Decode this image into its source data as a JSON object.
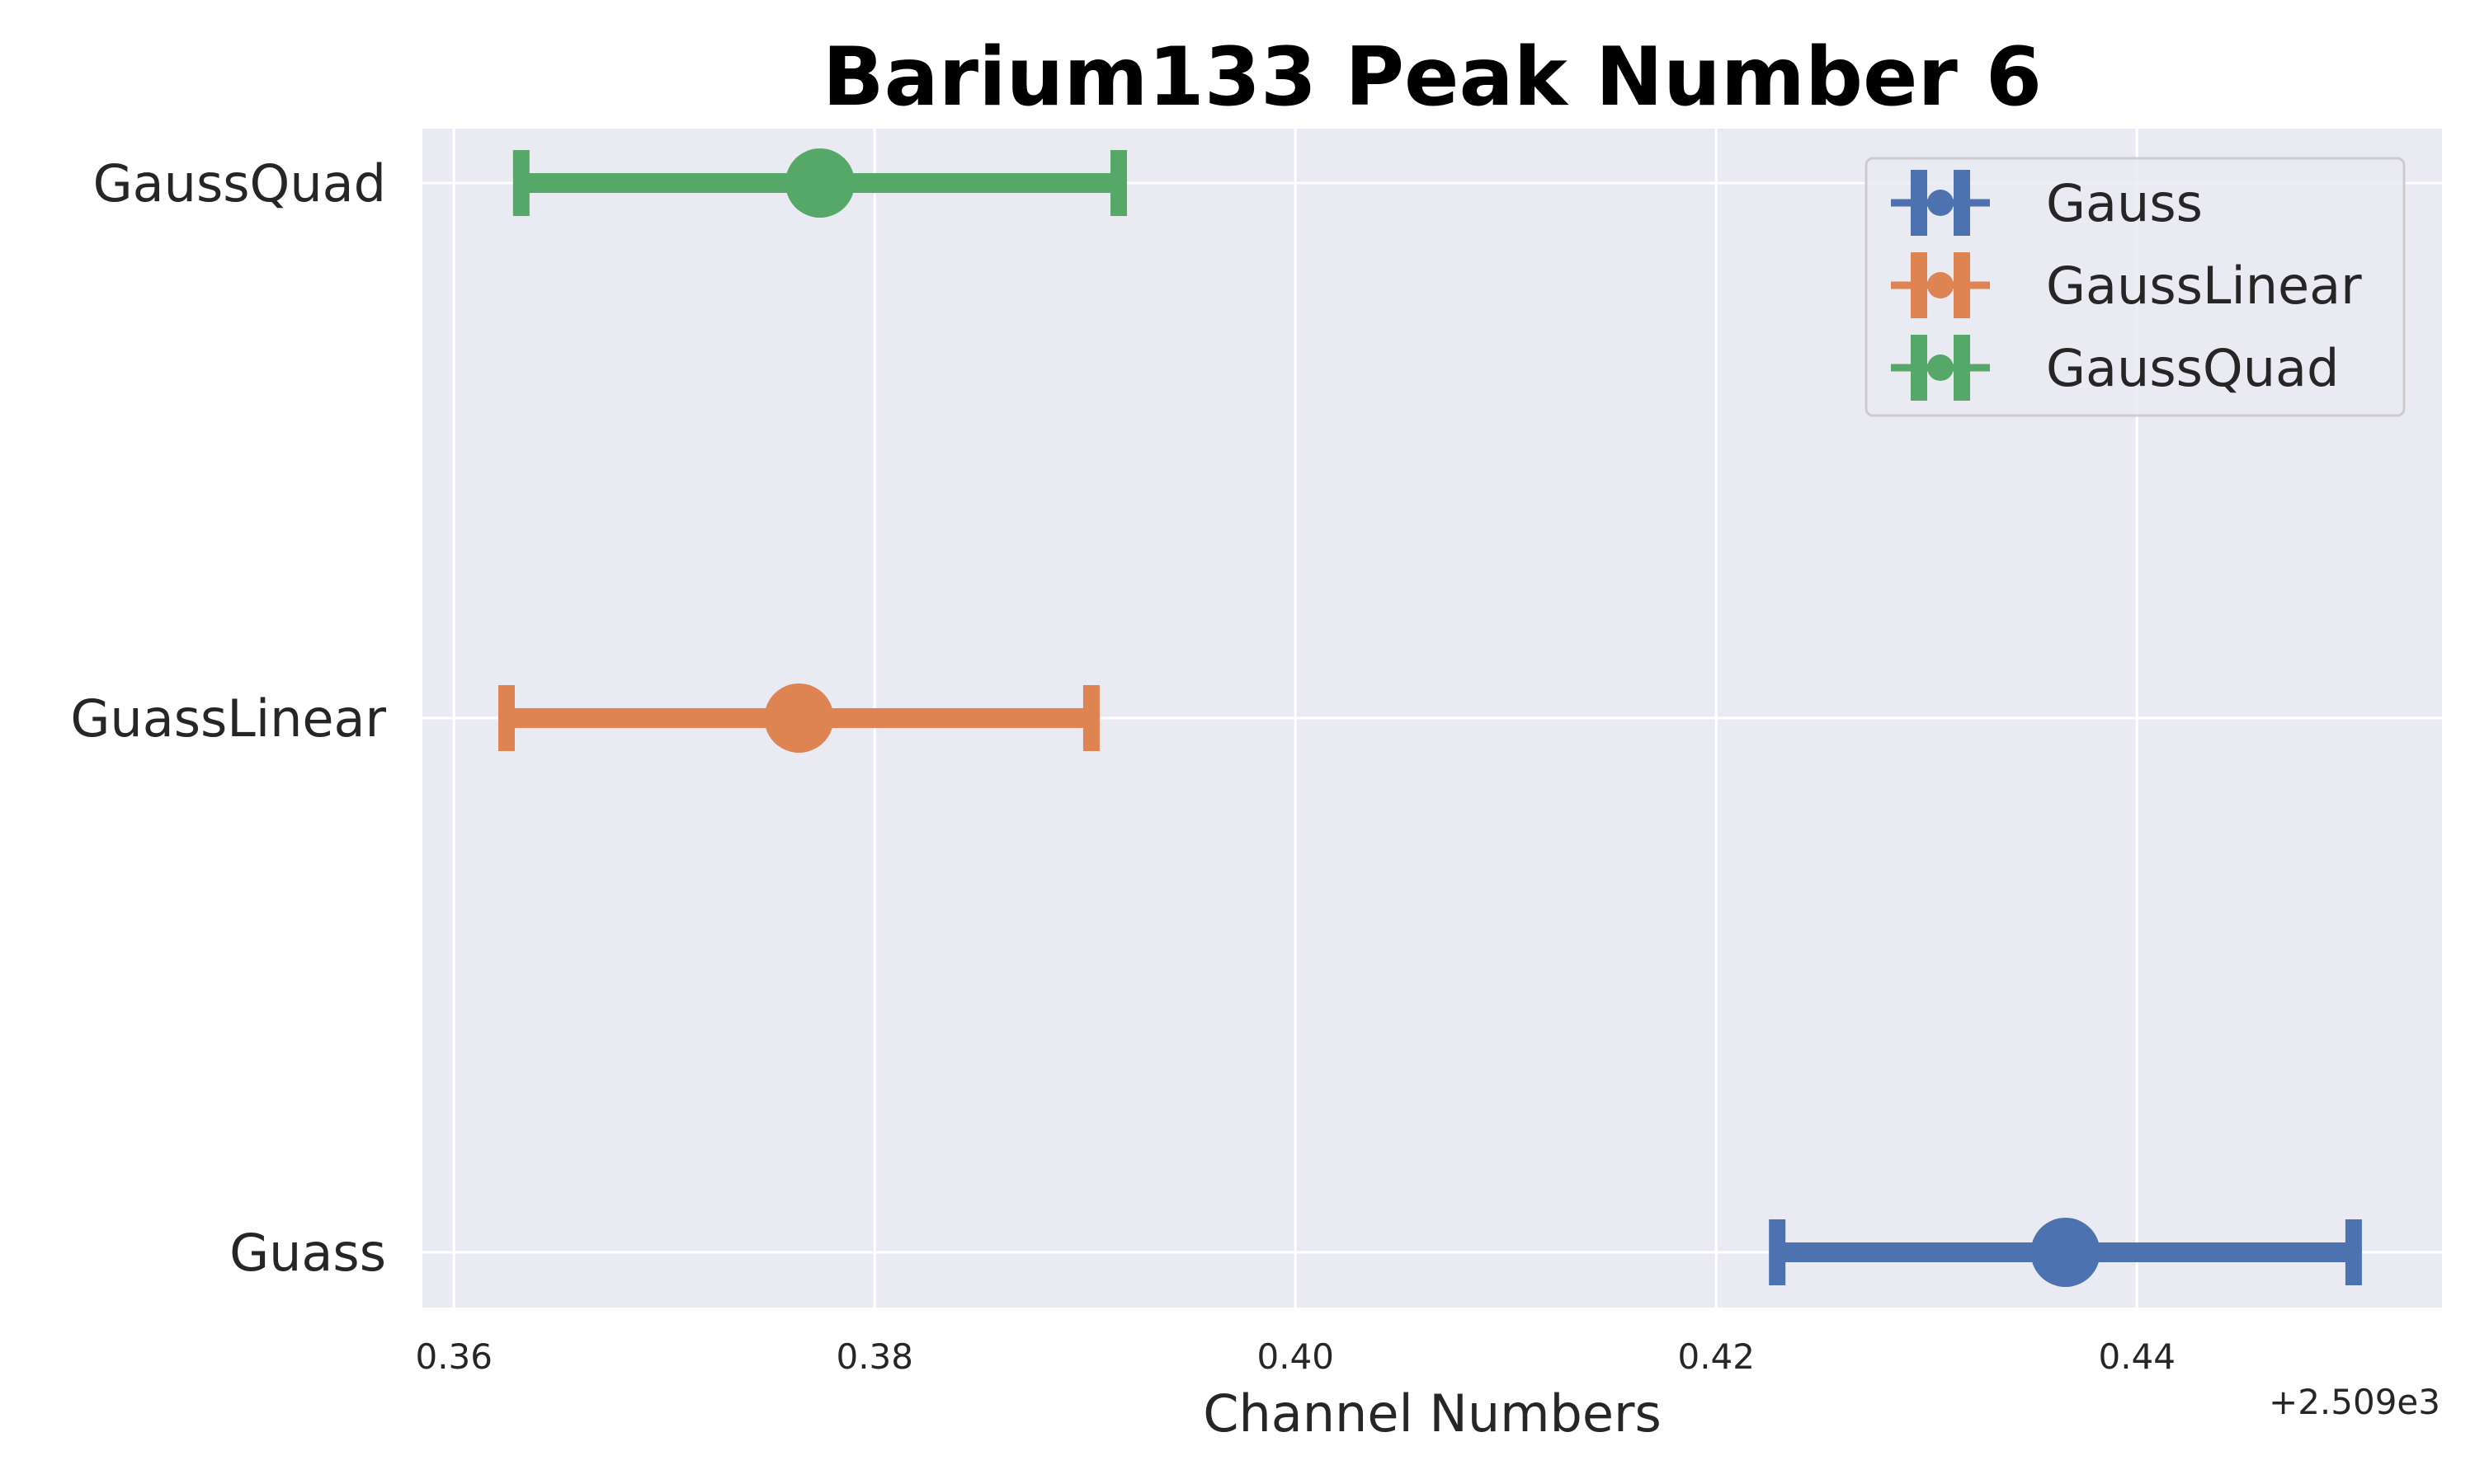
{
  "chart_data": {
    "type": "errorbar",
    "title": "Barium133 Peak Number 6",
    "xlabel": "Channel Numbers",
    "ylabel": "",
    "x_offset_label": "+2.509e3",
    "x_offset": 2509,
    "xlim": [
      0.3585,
      0.4545
    ],
    "x_ticks": [
      {
        "value": 0.36,
        "label": "0.36"
      },
      {
        "value": 0.38,
        "label": "0.38"
      },
      {
        "value": 0.4,
        "label": "0.40"
      },
      {
        "value": 0.42,
        "label": "0.42"
      },
      {
        "value": 0.44,
        "label": "0.44"
      }
    ],
    "categories": [
      "Guass",
      "GuassLinear",
      "GaussQuad"
    ],
    "grid": true,
    "legend_position": "top-right",
    "series": [
      {
        "name": "Gauss",
        "category": "Guass",
        "x": 0.4366,
        "xerr": 0.0137,
        "color": "#4c72b0"
      },
      {
        "name": "GaussLinear",
        "category": "GuassLinear",
        "x": 0.3764,
        "xerr": 0.0139,
        "color": "#dd8452"
      },
      {
        "name": "GaussQuad",
        "category": "GaussQuad",
        "x": 0.3774,
        "xerr": 0.0142,
        "color": "#55a868"
      }
    ],
    "background_color": "#eaeaf2",
    "grid_color": "#ffffff"
  }
}
